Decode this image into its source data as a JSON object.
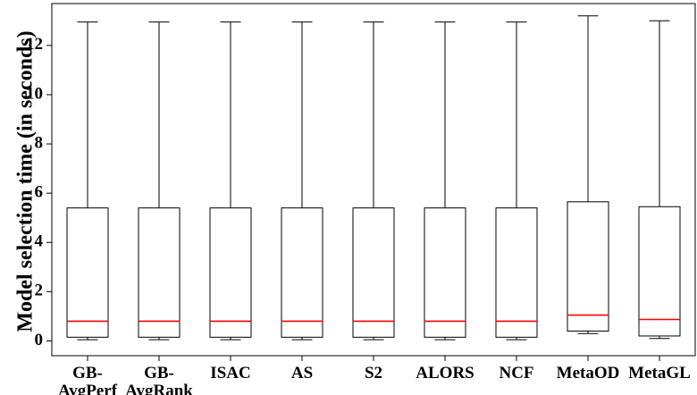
{
  "chart_data": {
    "type": "box",
    "ylabel": "Model selection time (in seconds)",
    "xlabel": "",
    "ylim": [
      -0.6,
      13.7
    ],
    "yticks": [
      0,
      2,
      4,
      6,
      8,
      10,
      12
    ],
    "grid": false,
    "median_color": "#ff0000",
    "categories": [
      [
        "GB-",
        "AvgPerf"
      ],
      [
        "GB-",
        "AvgRank"
      ],
      [
        "ISAC"
      ],
      [
        "AS"
      ],
      [
        "S2"
      ],
      [
        "ALORS"
      ],
      [
        "NCF"
      ],
      [
        "MetaOD"
      ],
      [
        "MetaGL"
      ]
    ],
    "boxes": [
      {
        "whisker_low": 0.05,
        "q1": 0.15,
        "median": 0.8,
        "q3": 5.4,
        "whisker_high": 12.95
      },
      {
        "whisker_low": 0.05,
        "q1": 0.15,
        "median": 0.8,
        "q3": 5.4,
        "whisker_high": 12.95
      },
      {
        "whisker_low": 0.05,
        "q1": 0.15,
        "median": 0.8,
        "q3": 5.4,
        "whisker_high": 12.95
      },
      {
        "whisker_low": 0.05,
        "q1": 0.15,
        "median": 0.8,
        "q3": 5.4,
        "whisker_high": 12.95
      },
      {
        "whisker_low": 0.05,
        "q1": 0.15,
        "median": 0.8,
        "q3": 5.4,
        "whisker_high": 12.95
      },
      {
        "whisker_low": 0.05,
        "q1": 0.15,
        "median": 0.8,
        "q3": 5.4,
        "whisker_high": 12.95
      },
      {
        "whisker_low": 0.05,
        "q1": 0.15,
        "median": 0.8,
        "q3": 5.4,
        "whisker_high": 12.95
      },
      {
        "whisker_low": 0.3,
        "q1": 0.4,
        "median": 1.05,
        "q3": 5.65,
        "whisker_high": 13.2
      },
      {
        "whisker_low": 0.1,
        "q1": 0.2,
        "median": 0.87,
        "q3": 5.45,
        "whisker_high": 13.0
      }
    ]
  }
}
